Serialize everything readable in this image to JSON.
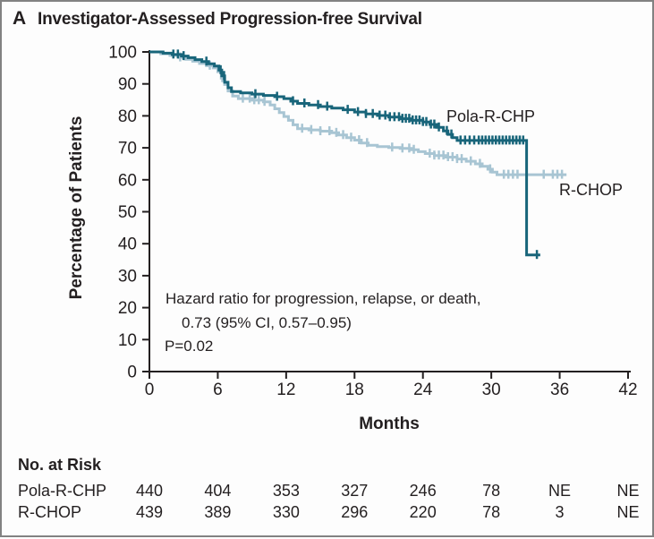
{
  "figure": {
    "panel_label": "A",
    "title": "Investigator-Assessed Progression-free Survival"
  },
  "chart_data": {
    "type": "line",
    "subtype": "kaplan-meier-step",
    "title": "Investigator-Assessed Progression-free Survival",
    "xlabel": "Months",
    "ylabel": "Percentage of Patients",
    "xlim": [
      0,
      42
    ],
    "ylim": [
      0,
      100
    ],
    "x_ticks": [
      0,
      6,
      12,
      18,
      24,
      30,
      36,
      42
    ],
    "y_ticks": [
      0,
      10,
      20,
      30,
      40,
      50,
      60,
      70,
      80,
      90,
      100
    ],
    "grid": false,
    "axis_color": "#231f20",
    "annotation": {
      "line1": "Hazard ratio for progression, relapse, or death,",
      "line2": "0.73 (95% CI, 0.57–0.95)",
      "line3": "P=0.02"
    },
    "series": [
      {
        "name": "R-CHOP",
        "color": "#A8C5D3",
        "points": [
          [
            0,
            100
          ],
          [
            1,
            99.4
          ],
          [
            1.8,
            98.9
          ],
          [
            2.6,
            98.3
          ],
          [
            3.2,
            97.7
          ],
          [
            3.8,
            97.1
          ],
          [
            4.4,
            96.4
          ],
          [
            5,
            95.7
          ],
          [
            5.6,
            95
          ],
          [
            6,
            93.8
          ],
          [
            6.3,
            91.8
          ],
          [
            6.6,
            89.8
          ],
          [
            6.9,
            87.8
          ],
          [
            7.3,
            86.2
          ],
          [
            7.8,
            85.4
          ],
          [
            9,
            84.9
          ],
          [
            10,
            84.4
          ],
          [
            10.6,
            83.4
          ],
          [
            11,
            82.2
          ],
          [
            11.4,
            81
          ],
          [
            11.8,
            79.8
          ],
          [
            12.2,
            78.6
          ],
          [
            12.6,
            77.2
          ],
          [
            13,
            76
          ],
          [
            14,
            75.6
          ],
          [
            15,
            75.2
          ],
          [
            16,
            74.7
          ],
          [
            16.6,
            74
          ],
          [
            17.3,
            73.2
          ],
          [
            18,
            72.4
          ],
          [
            18.6,
            71.5
          ],
          [
            19.2,
            70.8
          ],
          [
            20,
            70.4
          ],
          [
            21,
            70.1
          ],
          [
            22,
            69.8
          ],
          [
            23,
            69.4
          ],
          [
            23.6,
            68.8
          ],
          [
            24.2,
            68.2
          ],
          [
            25,
            67.6
          ],
          [
            26,
            67.1
          ],
          [
            27,
            66.5
          ],
          [
            27.8,
            65.8
          ],
          [
            28.6,
            65
          ],
          [
            29.2,
            64.2
          ],
          [
            29.7,
            63.3
          ],
          [
            30.1,
            62.4
          ],
          [
            30.5,
            61.6
          ],
          [
            36.6,
            61.6
          ]
        ],
        "censor_months": [
          2.7,
          5.3,
          6.4,
          8.2,
          8.8,
          9.2,
          9.6,
          10.1,
          13.4,
          14.2,
          15,
          15.8,
          16.4,
          17,
          17.7,
          18.4,
          19.1,
          21.3,
          22.2,
          22.8,
          23.2,
          24.6,
          25,
          25.4,
          25.8,
          26.2,
          26.6,
          27,
          27.4,
          28.2,
          29,
          29.9,
          31.1,
          31.5,
          31.9,
          32.3,
          34.6,
          35.4,
          35.8,
          36.2
        ]
      },
      {
        "name": "Pola-R-CHP",
        "color": "#18657A",
        "points": [
          [
            0,
            100
          ],
          [
            1.2,
            99.6
          ],
          [
            2,
            99.2
          ],
          [
            2.8,
            98.7
          ],
          [
            3.4,
            98.2
          ],
          [
            4,
            97.6
          ],
          [
            4.6,
            97
          ],
          [
            5.2,
            96.3
          ],
          [
            5.7,
            95.6
          ],
          [
            6.1,
            94.3
          ],
          [
            6.35,
            92.5
          ],
          [
            6.6,
            90.5
          ],
          [
            6.9,
            88.8
          ],
          [
            7.2,
            87.6
          ],
          [
            8,
            87.2
          ],
          [
            9,
            86.8
          ],
          [
            10,
            86.4
          ],
          [
            11,
            86
          ],
          [
            11.8,
            85.4
          ],
          [
            12.4,
            84.6
          ],
          [
            13,
            83.9
          ],
          [
            14,
            83.4
          ],
          [
            15,
            82.9
          ],
          [
            16,
            82.4
          ],
          [
            17,
            81.9
          ],
          [
            18,
            81.2
          ],
          [
            19,
            80.6
          ],
          [
            20,
            80.1
          ],
          [
            21,
            79.6
          ],
          [
            22,
            79.1
          ],
          [
            23,
            78.6
          ],
          [
            24,
            78.1
          ],
          [
            24.6,
            77.3
          ],
          [
            25.2,
            76.4
          ],
          [
            25.8,
            75.3
          ],
          [
            26.2,
            74.2
          ],
          [
            26.6,
            73.2
          ],
          [
            27,
            72.3
          ],
          [
            33.1,
            36.5
          ],
          [
            34.3,
            36.5
          ]
        ],
        "censor_months": [
          2.1,
          2.5,
          3,
          5,
          6.25,
          6.55,
          9.3,
          11.2,
          12.6,
          13.6,
          14.8,
          15.6,
          17.4,
          18.3,
          19,
          19.6,
          20.2,
          20.7,
          21.1,
          21.5,
          21.9,
          22.2,
          22.5,
          22.8,
          23.1,
          23.4,
          23.7,
          24,
          24.3,
          24.7,
          25,
          25.4,
          26.1,
          26.5,
          27.3,
          27.7,
          28.1,
          28.5,
          28.9,
          29.2,
          29.5,
          29.8,
          30.1,
          30.4,
          30.7,
          31,
          31.3,
          31.6,
          31.9,
          32.2,
          32.5,
          32.8,
          34
        ]
      }
    ]
  },
  "risk_table": {
    "title": "No. at Risk",
    "rows": [
      {
        "label": "Pola-R-CHP",
        "values": [
          "440",
          "404",
          "353",
          "327",
          "246",
          "78",
          "NE",
          "NE"
        ]
      },
      {
        "label": "R-CHOP",
        "values": [
          "439",
          "389",
          "330",
          "296",
          "220",
          "78",
          "3",
          "NE"
        ]
      }
    ]
  }
}
